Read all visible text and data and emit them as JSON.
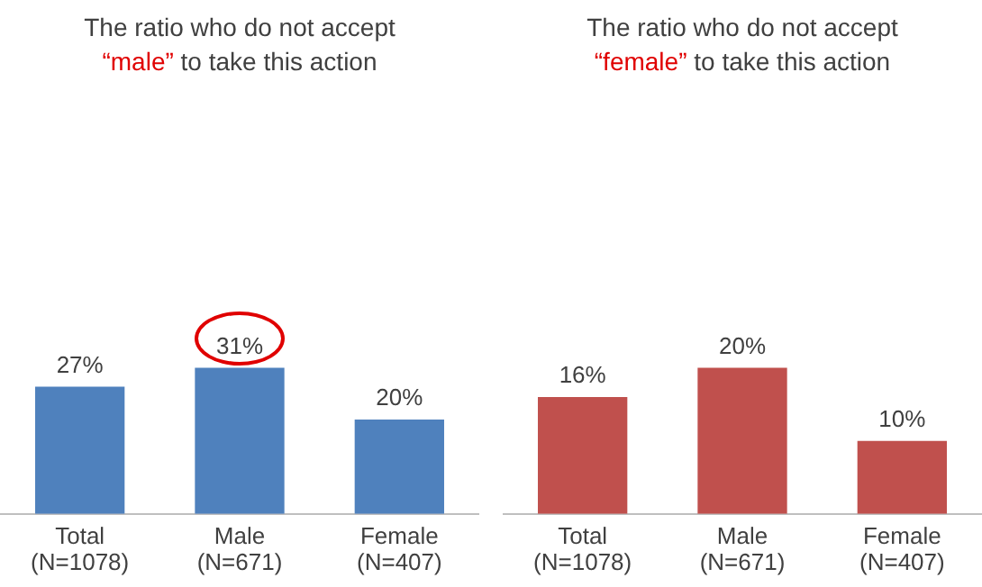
{
  "chart_data": [
    {
      "type": "bar",
      "title": "The ratio who do not accept “male” to take this action",
      "categories": [
        "Total (N=1078)",
        "Male (N=671)",
        "Female (N=407)"
      ],
      "values": [
        27,
        31,
        20
      ],
      "value_labels": [
        "27%",
        "31%",
        "20%"
      ],
      "color": "#4f81bd",
      "tick_labels": "x",
      "grid": false,
      "legend": false
    },
    {
      "type": "bar",
      "title": "The ratio who do not accept “female” to take this action",
      "categories": [
        "Total (N=1078)",
        "Male (N=671)",
        "Female (N=407)"
      ],
      "values": [
        16,
        20,
        10
      ],
      "value_labels": [
        "16%",
        "20%",
        "10%"
      ],
      "color": "#c0504d",
      "tick_labels": "x",
      "grid": false,
      "legend": false
    }
  ]
}
